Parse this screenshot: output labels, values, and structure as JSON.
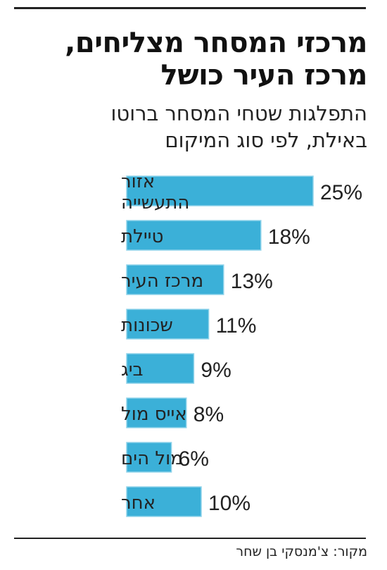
{
  "title_lines": [
    "מרכזי המסחר מצליחים,",
    "מרכז העיר כושל"
  ],
  "subtitle_lines": [
    "התפלגות שטחי המסחר ברוטו",
    "באילת, לפי סוג המיקום"
  ],
  "source": "מקור: צ'מנסקי בן שחר",
  "colors": {
    "bar": "#3bb0d8",
    "bar_stroke": "#8fd3ea",
    "text": "#222222"
  },
  "chart_data": {
    "type": "bar",
    "orientation": "horizontal",
    "categories": [
      [
        "אזור",
        "התעשייה"
      ],
      [
        "טיילת"
      ],
      [
        "מרכז העיר"
      ],
      [
        "שכונות"
      ],
      [
        "ביג"
      ],
      [
        "אייס מול"
      ],
      [
        "מול הים"
      ],
      [
        "אחר"
      ]
    ],
    "values": [
      25,
      18,
      13,
      11,
      9,
      8,
      6,
      10
    ],
    "value_labels": [
      "25%",
      "18%",
      "13%",
      "11%",
      "9%",
      "8%",
      "6%",
      "10%"
    ],
    "unit": "%",
    "grid": false,
    "legend": "none"
  }
}
